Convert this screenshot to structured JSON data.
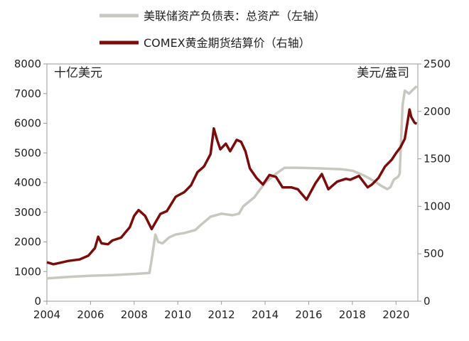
{
  "chart_data": {
    "type": "line",
    "legend": {
      "placement": "top",
      "entries": [
        {
          "label": "美联储资产负债表：总资产（左轴）",
          "series": "fed"
        },
        {
          "label": "COMEX黄金期货结算价（右轴）",
          "series": "gold"
        }
      ]
    },
    "y_left": {
      "label": "十亿美元",
      "range": [
        0,
        8000
      ],
      "ticks": [
        "0",
        "1000",
        "2000",
        "3000",
        "4000",
        "5000",
        "6000",
        "7000",
        "8000"
      ]
    },
    "y_right": {
      "label": "美元/盎司",
      "range": [
        0,
        2500
      ],
      "ticks": [
        "0",
        "500",
        "1000",
        "1500",
        "2000",
        "2500"
      ]
    },
    "x_axis": {
      "range": [
        2004,
        2021
      ],
      "ticks": [
        "2004",
        "2006",
        "2008",
        "2010",
        "2012",
        "2014",
        "2016",
        "2018",
        "2020"
      ]
    },
    "series": [
      {
        "id": "fed",
        "axis": "left",
        "color": "#c8c8c0",
        "x": [
          2004.0,
          2005.0,
          2006.0,
          2007.0,
          2008.0,
          2008.7,
          2008.8,
          2008.9,
          2008.97,
          2009.1,
          2009.3,
          2009.6,
          2009.9,
          2010.3,
          2010.8,
          2011.1,
          2011.5,
          2012.0,
          2012.5,
          2012.8,
          2013.0,
          2013.5,
          2014.0,
          2014.5,
          2014.9,
          2015.5,
          2016.5,
          2017.5,
          2018.0,
          2018.5,
          2019.0,
          2019.3,
          2019.6,
          2019.75,
          2019.9,
          2020.1,
          2020.17,
          2020.22,
          2020.3,
          2020.4,
          2020.5,
          2020.6,
          2020.8,
          2020.95
        ],
        "values": [
          770,
          820,
          860,
          880,
          920,
          950,
          1400,
          1900,
          2250,
          2000,
          1950,
          2150,
          2250,
          2300,
          2400,
          2600,
          2850,
          2950,
          2900,
          2950,
          3200,
          3500,
          4000,
          4300,
          4500,
          4500,
          4480,
          4450,
          4400,
          4250,
          4050,
          3900,
          3780,
          3850,
          4100,
          4200,
          4300,
          5200,
          6600,
          7100,
          7050,
          7000,
          7150,
          7250
        ]
      },
      {
        "id": "gold",
        "axis": "right",
        "color": "#7a0c0c",
        "x": [
          2004.0,
          2004.3,
          2004.6,
          2005.0,
          2005.5,
          2005.9,
          2006.2,
          2006.35,
          2006.5,
          2006.8,
          2007.0,
          2007.4,
          2007.8,
          2008.0,
          2008.2,
          2008.5,
          2008.8,
          2008.95,
          2009.2,
          2009.5,
          2009.9,
          2010.3,
          2010.6,
          2010.9,
          2011.2,
          2011.5,
          2011.65,
          2011.8,
          2011.95,
          2012.2,
          2012.4,
          2012.7,
          2012.9,
          2013.1,
          2013.3,
          2013.6,
          2013.9,
          2014.2,
          2014.5,
          2014.8,
          2015.2,
          2015.5,
          2015.9,
          2016.3,
          2016.6,
          2016.9,
          2017.3,
          2017.7,
          2017.9,
          2018.3,
          2018.7,
          2018.9,
          2019.2,
          2019.5,
          2019.8,
          2020.0,
          2020.2,
          2020.4,
          2020.55,
          2020.62,
          2020.7,
          2020.85,
          2020.95
        ],
        "values": [
          410,
          390,
          405,
          425,
          440,
          480,
          560,
          680,
          610,
          600,
          640,
          670,
          780,
          900,
          960,
          900,
          760,
          820,
          920,
          950,
          1100,
          1150,
          1220,
          1360,
          1420,
          1550,
          1820,
          1700,
          1600,
          1660,
          1580,
          1700,
          1680,
          1580,
          1400,
          1300,
          1230,
          1330,
          1310,
          1200,
          1200,
          1180,
          1070,
          1240,
          1340,
          1180,
          1260,
          1290,
          1280,
          1320,
          1200,
          1230,
          1300,
          1420,
          1490,
          1560,
          1620,
          1710,
          1920,
          2020,
          1940,
          1880,
          1870
        ]
      }
    ]
  }
}
